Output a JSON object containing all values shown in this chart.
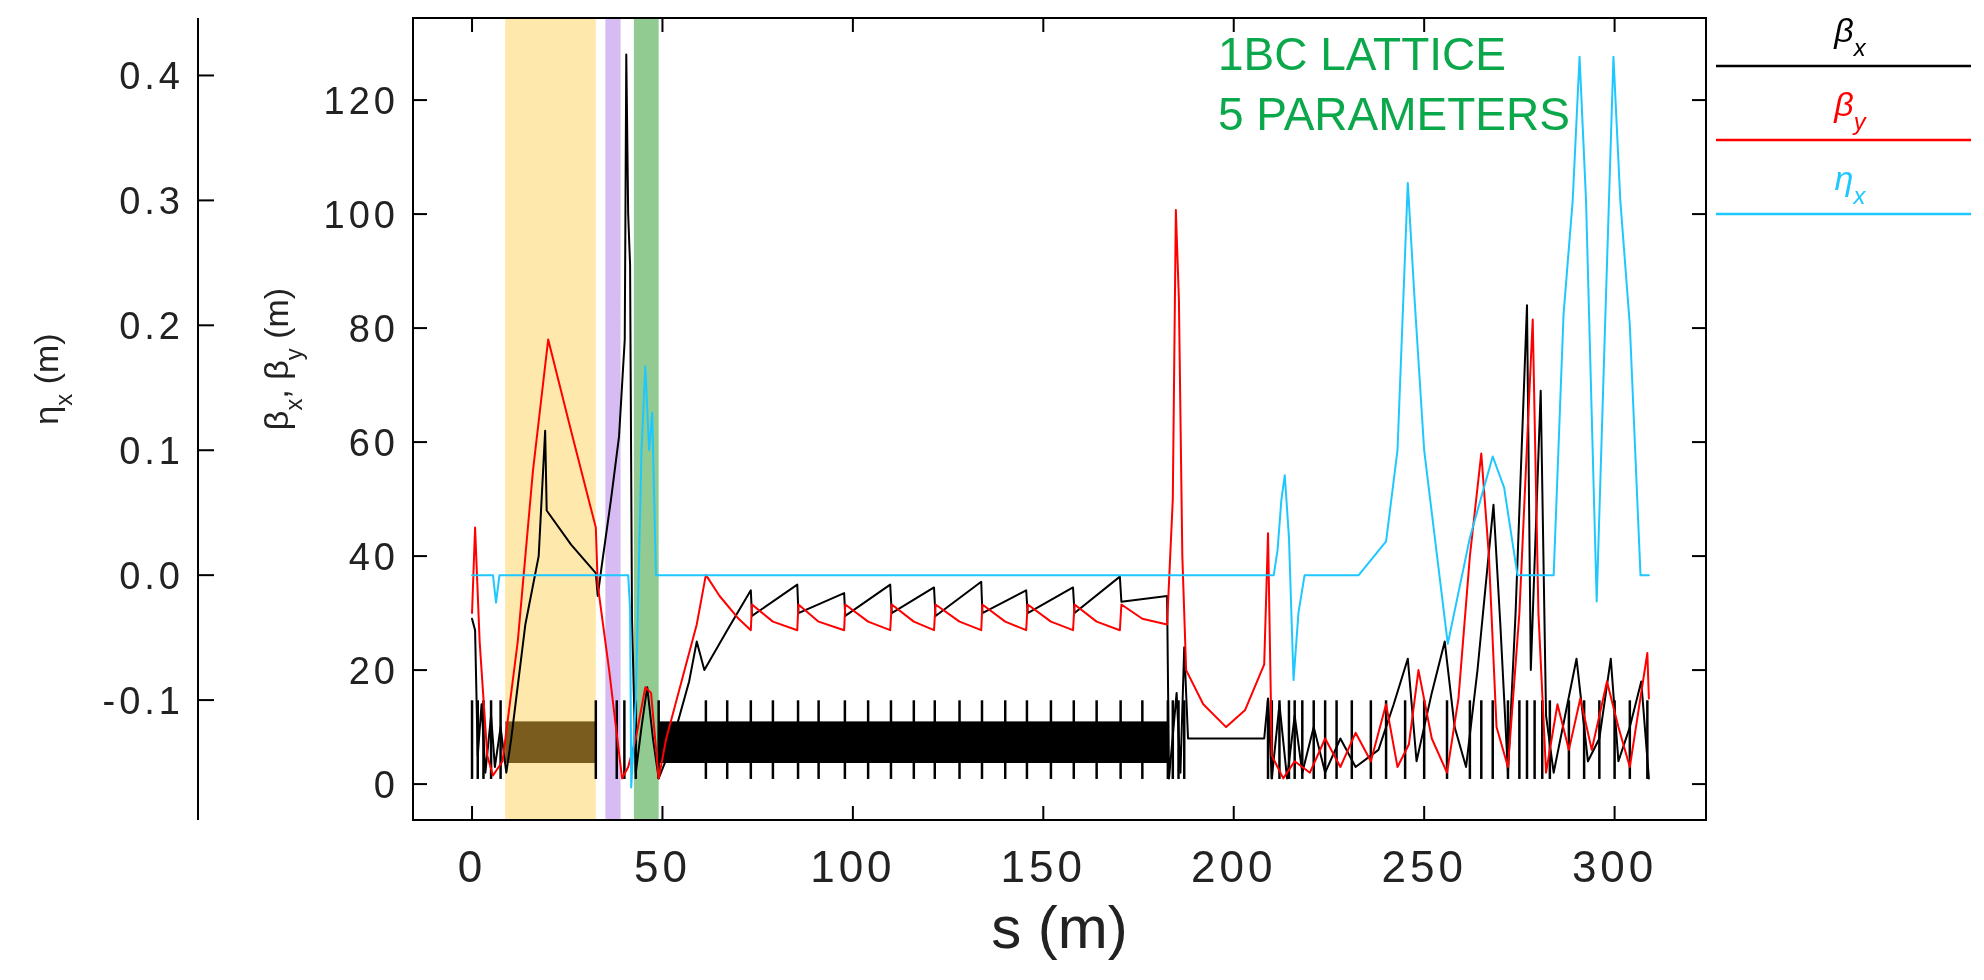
{
  "chart_data": {
    "type": "line",
    "xlabel": "s (m)",
    "ylabel": "β$_{x}$, β$_{y}$ (m)",
    "y2label": "η$_{x}$ (m)",
    "xlim": [
      -15.5,
      324
    ],
    "xticks": [
      0,
      50,
      100,
      150,
      200,
      250,
      300
    ],
    "ylim": [
      -6.3,
      134.4
    ],
    "yticks": [
      0,
      20,
      40,
      60,
      80,
      100,
      120
    ],
    "y2lim": [
      -0.196,
      0.446
    ],
    "y2ticks": [
      {
        "value": -0.1,
        "label": "-0.1"
      },
      {
        "value": 0,
        "label": "0.0"
      },
      {
        "value": 0.1,
        "label": "0.1"
      },
      {
        "value": 0.2,
        "label": "0.2"
      },
      {
        "value": 0.3,
        "label": "0.3"
      },
      {
        "value": 0.4,
        "label": "0.4"
      }
    ],
    "grid": false,
    "legend": "right",
    "marker": "none",
    "line_style": "solid",
    "annotations": [
      "1BC LATTICE",
      "5 PARAMETERS"
    ],
    "bands": [
      {
        "axis": "x",
        "from": 8.7,
        "to": 32.5,
        "color": "#fde08f"
      },
      {
        "axis": "x",
        "from": 35,
        "to": 39,
        "color": "#c9a6f0"
      },
      {
        "axis": "x",
        "from": 42.5,
        "to": 49,
        "color": "#6cba6c"
      }
    ],
    "series": [
      {
        "name": "β$_{x}$",
        "color": "#000000",
        "x": [
          0,
          0.8,
          1.5,
          2.5,
          3.5,
          5,
          6,
          7.5,
          9,
          10.3,
          14,
          17.5,
          19.2,
          19.6,
          26,
          32.5,
          33,
          34,
          36.5,
          38.6,
          40.1,
          40.5,
          41,
          41.5,
          42,
          43,
          44.5,
          46,
          47.5,
          49,
          52,
          57,
          59,
          61,
          67,
          73.2,
          73.5,
          85.4,
          85.7,
          97.7,
          98,
          109.8,
          110.2,
          121.3,
          121.7,
          133.7,
          134,
          145.5,
          145.9,
          157.8,
          158.2,
          170.1,
          170.5,
          182.5,
          183,
          185,
          186,
          187,
          188,
          208,
          209,
          210,
          212,
          214,
          216,
          218,
          221,
          224,
          228,
          232,
          238,
          242,
          245.7,
          248,
          252,
          255.4,
          258,
          261,
          264,
          268.2,
          270,
          272,
          274,
          277,
          278,
          280.6,
          282,
          284,
          287,
          290,
          293,
          296,
          299,
          301,
          304,
          307,
          309
        ],
        "values": [
          29,
          27,
          5,
          14,
          2,
          12,
          3,
          10,
          2,
          8,
          28,
          40,
          62,
          48,
          42,
          37,
          33,
          38,
          50,
          61,
          78,
          128,
          100,
          91,
          29,
          2,
          10,
          17,
          8,
          1,
          6,
          18,
          25,
          20,
          27,
          34,
          29.5,
          35,
          30,
          33.5,
          29.5,
          35,
          30,
          34.5,
          29.5,
          35.5,
          30,
          34,
          30,
          34.5,
          30,
          36.4,
          32,
          33,
          1,
          16,
          2,
          24,
          8,
          8,
          15,
          1,
          14,
          1,
          12,
          2,
          10,
          2,
          8,
          3,
          6,
          14,
          22,
          4,
          16,
          25,
          10,
          3,
          20,
          49,
          28,
          2,
          30,
          84,
          20,
          69,
          12,
          2,
          12,
          22,
          4,
          8,
          22,
          4,
          10,
          18,
          1
        ]
      },
      {
        "name": "β$_{y}$",
        "color": "#ff0000",
        "x": [
          0,
          0.8,
          2,
          4,
          5.5,
          8,
          12,
          16,
          20,
          26,
          32.5,
          33,
          36,
          39.4,
          41,
          43,
          45.5,
          47,
          49,
          51,
          55,
          59,
          61.4,
          65,
          70,
          73.2,
          73.5,
          79,
          85.4,
          85.7,
          91,
          97.7,
          98,
          104,
          109.8,
          110.2,
          116,
          121.3,
          121.7,
          128,
          133.7,
          134,
          140,
          145.5,
          145.9,
          152,
          157.8,
          158.2,
          164,
          170.1,
          170.5,
          176,
          182.5,
          184,
          184.8,
          185.6,
          186.5,
          187.5,
          192,
          198,
          203,
          208,
          209,
          210,
          213,
          216,
          220,
          224,
          228,
          232,
          236,
          240,
          243,
          246,
          248.5,
          252,
          256,
          259,
          262,
          265,
          267,
          269,
          272,
          275,
          278.5,
          280,
          282,
          285,
          288,
          291,
          294,
          298,
          301,
          304,
          308.6,
          309
        ],
        "values": [
          30,
          45,
          25,
          5,
          1.5,
          4,
          25,
          55,
          78,
          62,
          45,
          35,
          20,
          1,
          3,
          8,
          17,
          16,
          1,
          8,
          18,
          28,
          36.7,
          33,
          29,
          27,
          31.5,
          28.5,
          27,
          31.5,
          28.5,
          27,
          31.5,
          28.5,
          27,
          31.5,
          28.5,
          27,
          31.5,
          28.5,
          27,
          31.5,
          28.5,
          27,
          31.5,
          28.5,
          27,
          31.5,
          28.5,
          27,
          31.5,
          29,
          28,
          50,
          100.7,
          85,
          40,
          20,
          14,
          10,
          13,
          21,
          44,
          5,
          1,
          4,
          2,
          8,
          3,
          9,
          4,
          14,
          3,
          7,
          20,
          8,
          2,
          15,
          40,
          58,
          40,
          10,
          3,
          30,
          81.5,
          30,
          2,
          14,
          6,
          15,
          6,
          18,
          10,
          3,
          23,
          15
        ]
      },
      {
        "name": "η$_{x}$",
        "color": "#1ec8ff",
        "axis": "y2",
        "x": [
          0,
          5.5,
          6.3,
          7.2,
          41,
          41.5,
          41.8,
          43,
          44.5,
          45.5,
          46.5,
          47.3,
          48.3,
          210.5,
          211.5,
          212.5,
          213.4,
          214.5,
          215.7,
          217,
          218.6,
          232.8,
          240,
          243,
          245.7,
          247.5,
          250,
          256.2,
          262,
          268,
          271,
          274.5,
          284,
          286.6,
          289,
          290.8,
          292.5,
          295.3,
          297.5,
          299.7,
          301.5,
          304,
          306.8,
          309
        ],
        "values": [
          0,
          0,
          -0.022,
          0,
          0,
          -0.027,
          -0.17,
          -0.1,
          0.1,
          0.167,
          0.1,
          0.13,
          0,
          0,
          0.02,
          0.06,
          0.08,
          0.03,
          -0.084,
          -0.03,
          0,
          0,
          0.027,
          0.1,
          0.314,
          0.22,
          0.1,
          -0.055,
          0.03,
          0.095,
          0.07,
          0,
          0,
          0.209,
          0.3,
          0.415,
          0.3,
          -0.021,
          0.2,
          0.415,
          0.3,
          0.2,
          0,
          0
        ]
      }
    ]
  }
}
